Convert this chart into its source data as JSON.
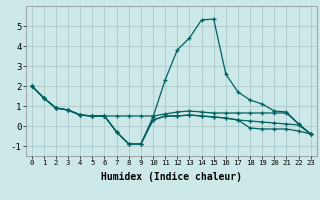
{
  "xlabel": "Humidex (Indice chaleur)",
  "ylabel": "",
  "background_color": "#cce8e8",
  "grid_color": "#b0cccc",
  "line_color": "#006060",
  "xlim": [
    -0.5,
    23.5
  ],
  "ylim": [
    -1.5,
    6.0
  ],
  "xticks": [
    0,
    1,
    2,
    3,
    4,
    5,
    6,
    7,
    8,
    9,
    10,
    11,
    12,
    13,
    14,
    15,
    16,
    17,
    18,
    19,
    20,
    21,
    22,
    23
  ],
  "yticks": [
    -1,
    0,
    1,
    2,
    3,
    4,
    5
  ],
  "series": [
    [
      2.0,
      1.4,
      0.9,
      0.8,
      0.55,
      0.5,
      0.5,
      0.5,
      0.5,
      0.5,
      0.5,
      0.6,
      0.7,
      0.75,
      0.7,
      0.65,
      0.65,
      0.65,
      0.65,
      0.65,
      0.65,
      0.65,
      0.1,
      -0.4
    ],
    [
      2.0,
      1.4,
      0.9,
      0.8,
      0.55,
      0.5,
      0.5,
      -0.3,
      -0.9,
      -0.9,
      0.45,
      2.3,
      3.8,
      4.4,
      5.3,
      5.35,
      2.6,
      1.7,
      1.3,
      1.1,
      0.75,
      0.7,
      0.1,
      -0.4
    ],
    [
      2.0,
      1.4,
      0.9,
      0.8,
      0.55,
      0.5,
      0.5,
      -0.3,
      -0.9,
      -0.9,
      0.3,
      0.5,
      0.5,
      0.55,
      0.5,
      0.45,
      0.4,
      0.3,
      0.25,
      0.2,
      0.15,
      0.1,
      0.05,
      -0.4
    ],
    [
      2.0,
      1.4,
      0.9,
      0.8,
      0.55,
      0.5,
      0.5,
      -0.3,
      -0.9,
      -0.9,
      0.3,
      0.5,
      0.5,
      0.55,
      0.5,
      0.45,
      0.4,
      0.3,
      -0.1,
      -0.15,
      -0.15,
      -0.15,
      -0.25,
      -0.4
    ]
  ]
}
